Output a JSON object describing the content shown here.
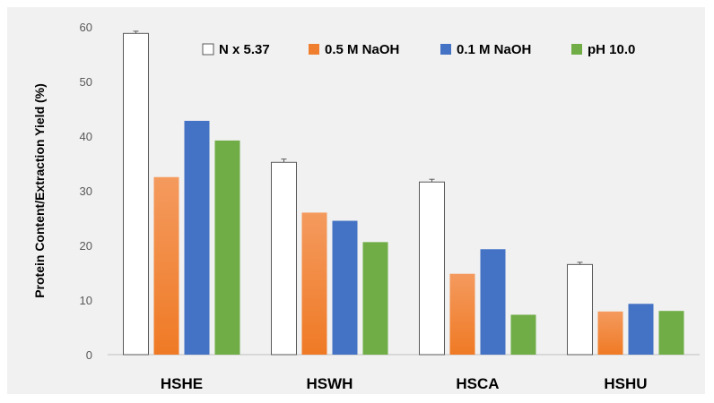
{
  "chart_data": {
    "type": "bar",
    "title": "",
    "xlabel": "",
    "ylabel": "Protein Content/Extraction Yield (%)",
    "ylim": [
      0,
      60
    ],
    "yticks": [
      "0",
      "10",
      "20",
      "30",
      "40",
      "50",
      "60"
    ],
    "categories": [
      "HSHE",
      "HSWH",
      "HSCA",
      "HSHU"
    ],
    "series": [
      {
        "name": "N x 5.37",
        "color": "#ffffff",
        "stroke": "#595959",
        "values": [
          58.8,
          35.2,
          31.6,
          16.5
        ],
        "errors": [
          0.4,
          0.6,
          0.5,
          0.4
        ]
      },
      {
        "name": "0.5 M NaOH",
        "color": "#ef7f2f",
        "values": [
          32.5,
          26.0,
          14.8,
          7.9
        ]
      },
      {
        "name": "0.1 M NaOH",
        "color": "#4472c4",
        "values": [
          42.8,
          24.5,
          19.3,
          9.3
        ]
      },
      {
        "name": "pH 10.0",
        "color": "#70ad47",
        "values": [
          39.2,
          20.6,
          7.3,
          8.0
        ]
      }
    ],
    "legend_position": "top-right",
    "grid": false
  }
}
